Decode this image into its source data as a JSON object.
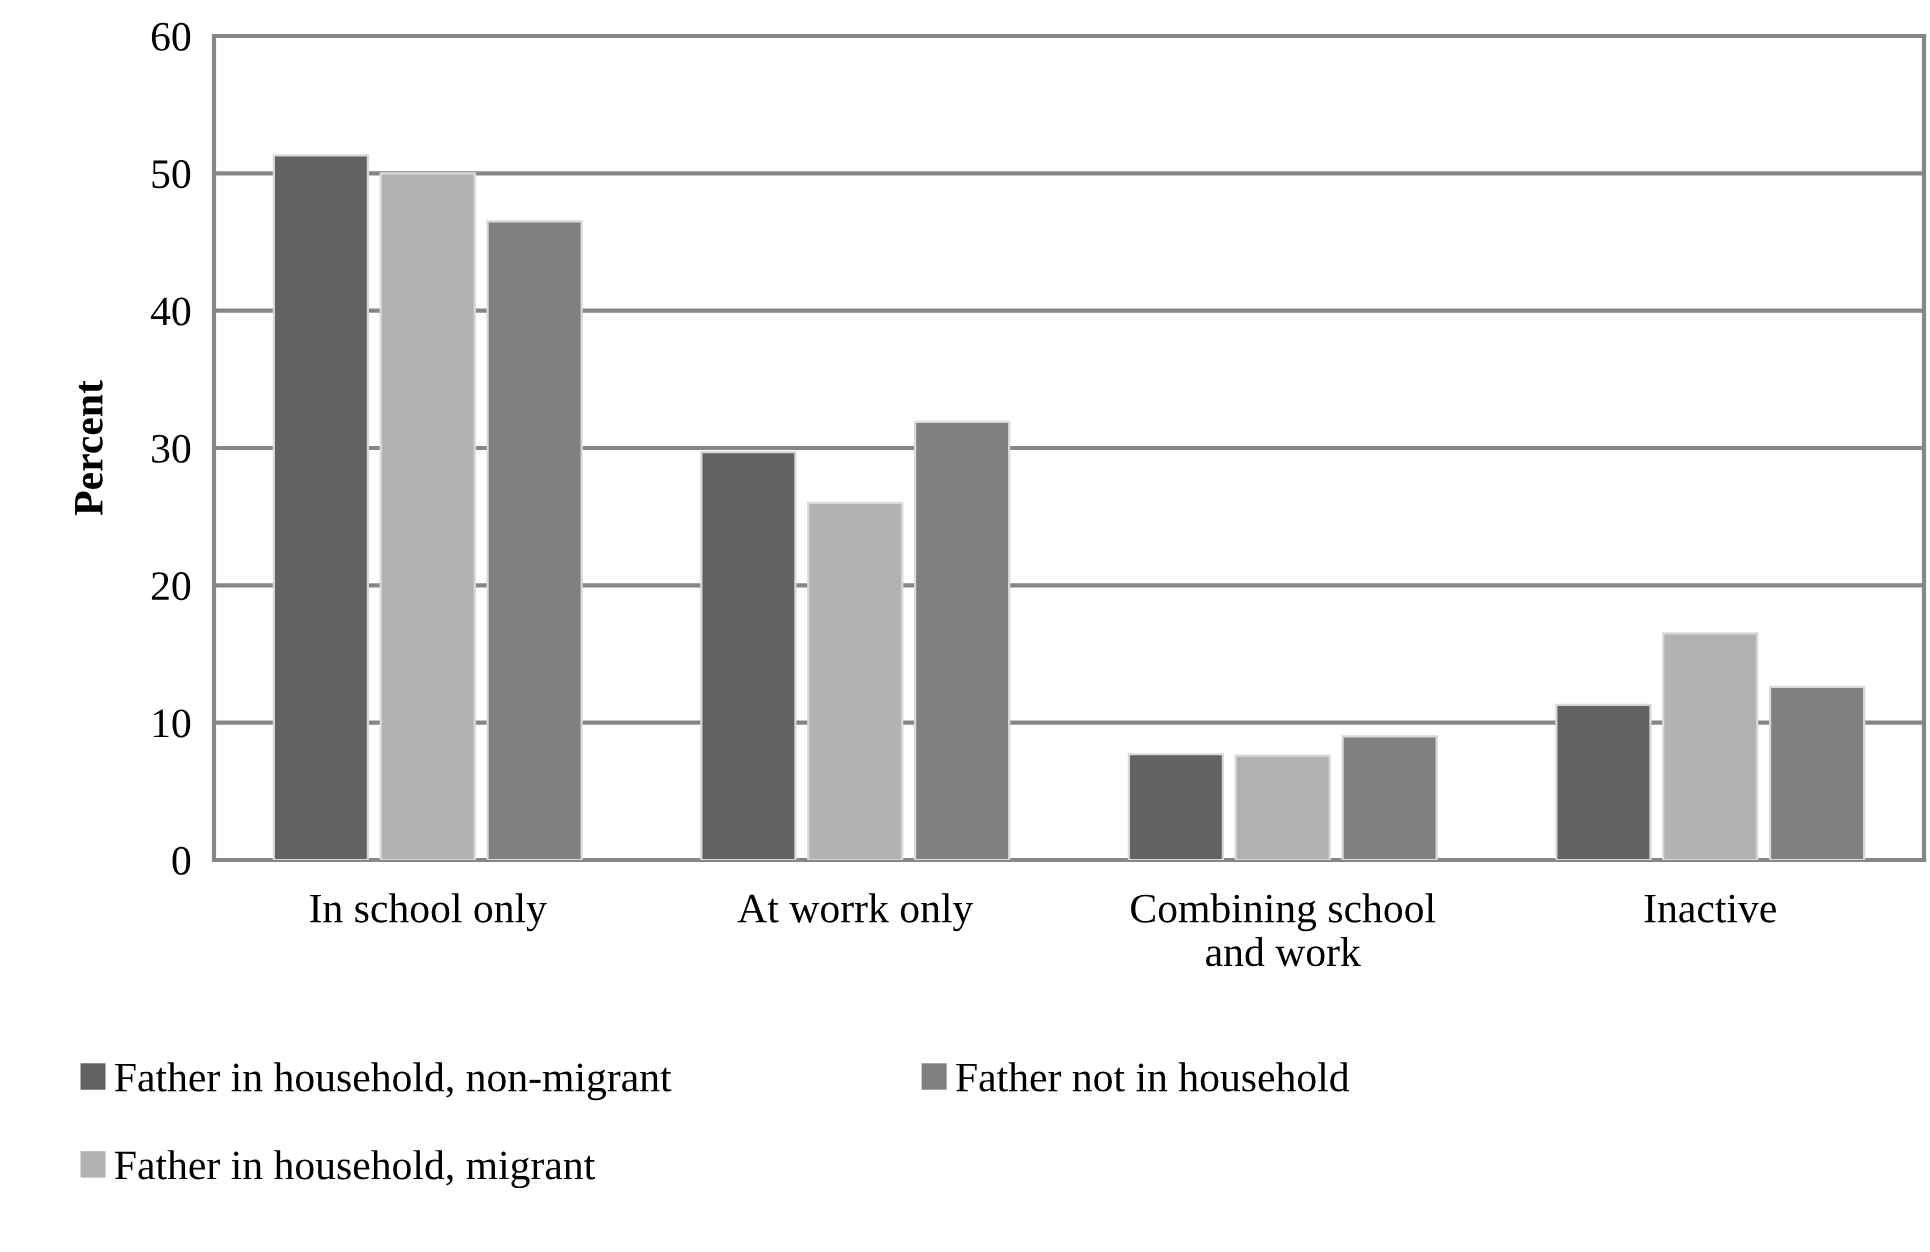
{
  "chart_data": {
    "type": "bar",
    "ylabel": "Percent",
    "categories": [
      "In school only",
      "At worrk only",
      "Combining school\nand work",
      "Inactive"
    ],
    "series": [
      {
        "name": "Father in household, non-migrant",
        "color": "#626262",
        "values": [
          51.3,
          29.7,
          7.7,
          11.3
        ]
      },
      {
        "name": "Father in household, migrant",
        "color": "#b2b2b2",
        "values": [
          50.0,
          26.0,
          7.6,
          16.5
        ]
      },
      {
        "name": "Father not in household",
        "color": "#808080",
        "values": [
          46.5,
          31.9,
          9.0,
          12.6
        ]
      }
    ],
    "ylim": [
      0,
      60
    ],
    "yticks": [
      0,
      10,
      20,
      30,
      40,
      50,
      60
    ],
    "grid": "y",
    "legend": "bottom"
  }
}
